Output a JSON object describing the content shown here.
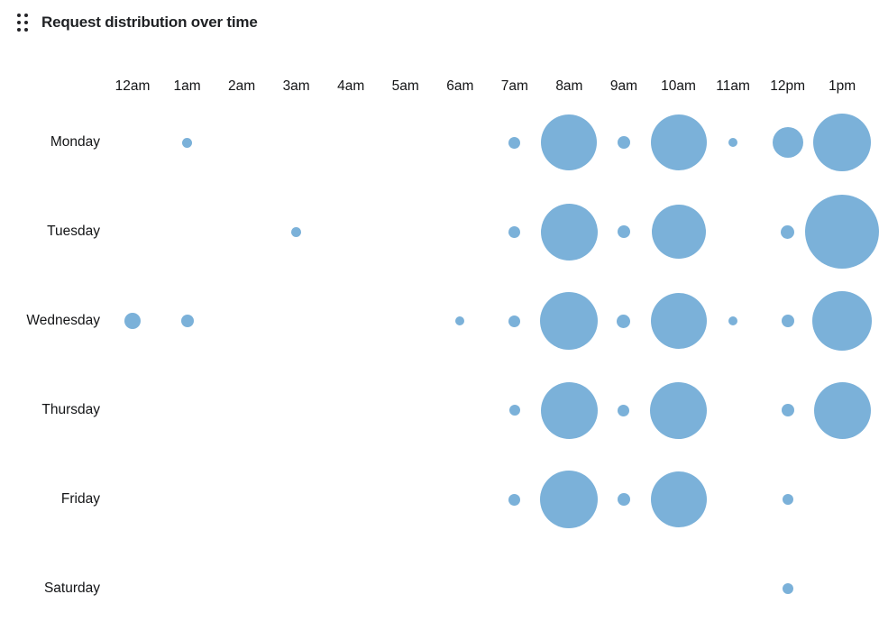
{
  "header": {
    "title": "Request distribution over time",
    "drag_handle_icon": "drag-handle-icon"
  },
  "colors": {
    "bubble": "#7bb1d9",
    "title_text": "#1f2124",
    "axis_text": "#131416",
    "background": "#ffffff"
  },
  "chart_data": {
    "type": "scatter",
    "subtype": "punchcard-bubble",
    "title": "Request distribution over time",
    "xlabel": "",
    "ylabel": "",
    "grid": false,
    "legend": false,
    "x_labels": [
      "12am",
      "1am",
      "2am",
      "3am",
      "4am",
      "5am",
      "6am",
      "7am",
      "8am",
      "9am",
      "10am",
      "11am",
      "12pm",
      "1pm"
    ],
    "y_labels": [
      "Monday",
      "Tuesday",
      "Wednesday",
      "Thursday",
      "Friday",
      "Saturday"
    ],
    "notes": "Bubble size encodes request volume; no numeric labels shown. size = bubble diameter in px. Rightmost 1pm column is clipped by the viewport edge.",
    "points": [
      {
        "day": "Monday",
        "hour": "1am",
        "size": 11
      },
      {
        "day": "Monday",
        "hour": "7am",
        "size": 13
      },
      {
        "day": "Monday",
        "hour": "8am",
        "size": 62
      },
      {
        "day": "Monday",
        "hour": "9am",
        "size": 14
      },
      {
        "day": "Monday",
        "hour": "10am",
        "size": 62
      },
      {
        "day": "Monday",
        "hour": "11am",
        "size": 10
      },
      {
        "day": "Monday",
        "hour": "12pm",
        "size": 34
      },
      {
        "day": "Monday",
        "hour": "1pm",
        "size": 64
      },
      {
        "day": "Tuesday",
        "hour": "3am",
        "size": 11
      },
      {
        "day": "Tuesday",
        "hour": "7am",
        "size": 13
      },
      {
        "day": "Tuesday",
        "hour": "8am",
        "size": 63
      },
      {
        "day": "Tuesday",
        "hour": "9am",
        "size": 14
      },
      {
        "day": "Tuesday",
        "hour": "10am",
        "size": 60
      },
      {
        "day": "Tuesday",
        "hour": "12pm",
        "size": 15
      },
      {
        "day": "Tuesday",
        "hour": "1pm",
        "size": 82
      },
      {
        "day": "Wednesday",
        "hour": "12am",
        "size": 18
      },
      {
        "day": "Wednesday",
        "hour": "1am",
        "size": 14
      },
      {
        "day": "Wednesday",
        "hour": "6am",
        "size": 10
      },
      {
        "day": "Wednesday",
        "hour": "7am",
        "size": 13
      },
      {
        "day": "Wednesday",
        "hour": "8am",
        "size": 64
      },
      {
        "day": "Wednesday",
        "hour": "9am",
        "size": 15
      },
      {
        "day": "Wednesday",
        "hour": "10am",
        "size": 62
      },
      {
        "day": "Wednesday",
        "hour": "11am",
        "size": 10
      },
      {
        "day": "Wednesday",
        "hour": "12pm",
        "size": 14
      },
      {
        "day": "Wednesday",
        "hour": "1pm",
        "size": 66
      },
      {
        "day": "Thursday",
        "hour": "7am",
        "size": 12
      },
      {
        "day": "Thursday",
        "hour": "8am",
        "size": 63
      },
      {
        "day": "Thursday",
        "hour": "9am",
        "size": 13
      },
      {
        "day": "Thursday",
        "hour": "10am",
        "size": 63
      },
      {
        "day": "Thursday",
        "hour": "12pm",
        "size": 14
      },
      {
        "day": "Thursday",
        "hour": "1pm",
        "size": 63
      },
      {
        "day": "Friday",
        "hour": "7am",
        "size": 13
      },
      {
        "day": "Friday",
        "hour": "8am",
        "size": 64
      },
      {
        "day": "Friday",
        "hour": "9am",
        "size": 14
      },
      {
        "day": "Friday",
        "hour": "10am",
        "size": 62
      },
      {
        "day": "Friday",
        "hour": "12pm",
        "size": 12
      },
      {
        "day": "Saturday",
        "hour": "12pm",
        "size": 12
      }
    ]
  }
}
